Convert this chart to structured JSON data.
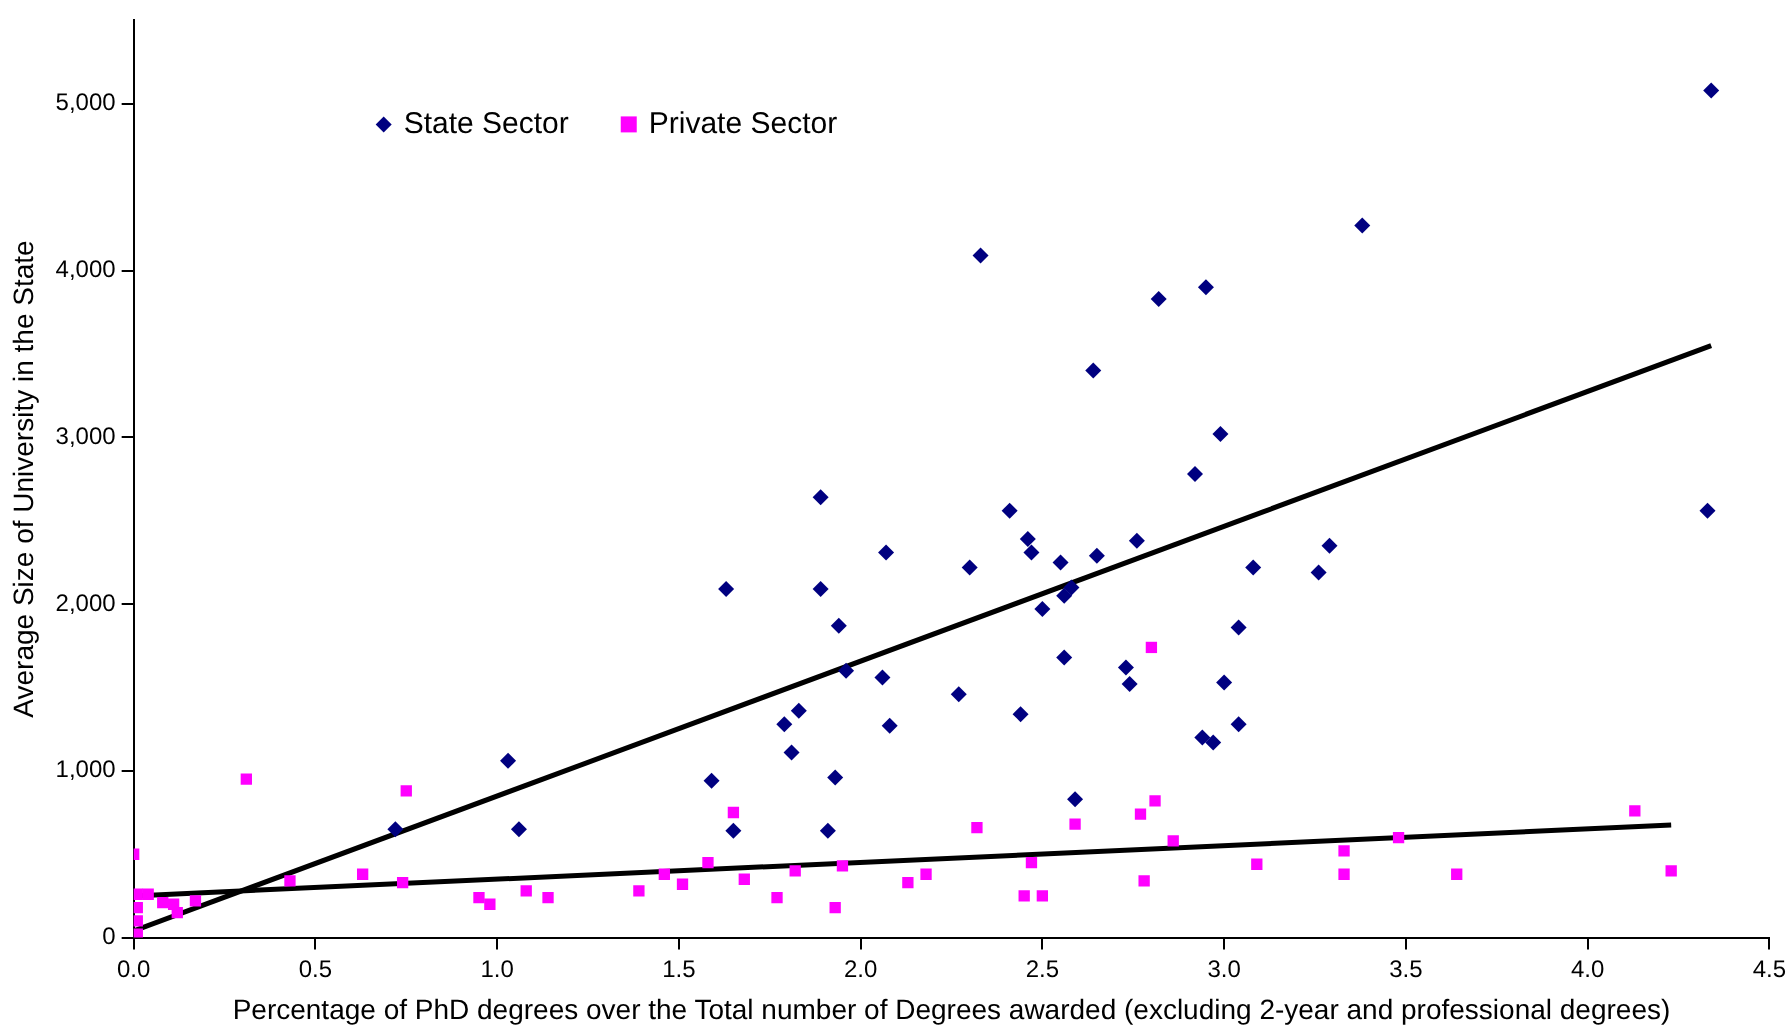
{
  "chart_data": {
    "type": "scatter",
    "xlabel": "Percentage of PhD degrees over the Total number of Degrees awarded (excluding 2-year and professional degrees)",
    "ylabel": "Average Size of University in the State",
    "xlim": [
      0,
      4.5
    ],
    "xticks": [
      {
        "value": 0,
        "label": "0.0"
      },
      {
        "value": 0.5,
        "label": "0.5"
      },
      {
        "value": 1,
        "label": "1.0"
      },
      {
        "value": 1.5,
        "label": "1.5"
      },
      {
        "value": 2,
        "label": "2.0"
      },
      {
        "value": 2.5,
        "label": "2.5"
      },
      {
        "value": 3,
        "label": "3.0"
      },
      {
        "value": 3.5,
        "label": "3.5"
      },
      {
        "value": 4,
        "label": "4.0"
      },
      {
        "value": 4.5,
        "label": "4.5"
      }
    ],
    "ylim": [
      0,
      5500
    ],
    "yticks": [
      0,
      {
        "value": 1000,
        "label": "1,000"
      },
      {
        "value": 2000,
        "label": "2,000"
      },
      {
        "value": 3000,
        "label": "3,000"
      },
      {
        "value": 4000,
        "label": "4,000"
      },
      {
        "value": 5000,
        "label": "5,000"
      }
    ],
    "grid": false,
    "legend": "top left",
    "series": [
      {
        "name": "State Sector",
        "color": "#000080",
        "marker": "diamond",
        "x": [
          0.72,
          1.03,
          1.06,
          1.59,
          1.63,
          1.65,
          1.79,
          1.81,
          1.83,
          1.89,
          1.89,
          1.91,
          1.93,
          1.94,
          1.96,
          2.06,
          2.07,
          2.08,
          2.27,
          2.3,
          2.33,
          2.41,
          2.44,
          2.46,
          2.47,
          2.5,
          2.55,
          2.56,
          2.56,
          2.58,
          2.59,
          2.64,
          2.65,
          2.73,
          2.74,
          2.76,
          2.82,
          2.92,
          2.94,
          2.95,
          2.97,
          2.99,
          3.0,
          3.04,
          3.04,
          3.08,
          3.26,
          3.29,
          3.38,
          4.33,
          4.34
        ],
        "values": [
          650,
          1060,
          650,
          940,
          2090,
          640,
          1280,
          1110,
          1360,
          2640,
          2090,
          640,
          960,
          1870,
          1600,
          1560,
          2310,
          1270,
          1460,
          2220,
          4090,
          2560,
          1340,
          2390,
          2310,
          1970,
          2250,
          1680,
          2050,
          2100,
          830,
          3400,
          2290,
          1620,
          1520,
          2380,
          3830,
          2780,
          1200,
          3900,
          1170,
          3020,
          1530,
          1860,
          1280,
          2220,
          2190,
          2350,
          4270,
          2560,
          5080
        ]
      },
      {
        "name": "Private Sector",
        "color": "#ff00ff",
        "marker": "square",
        "x": [
          0.0,
          0.01,
          0.04,
          0.01,
          0.01,
          0.01,
          0.08,
          0.11,
          0.12,
          0.17,
          0.31,
          0.43,
          0.63,
          0.74,
          0.75,
          0.95,
          0.98,
          1.08,
          1.14,
          1.39,
          1.46,
          1.51,
          1.58,
          1.65,
          1.68,
          1.77,
          1.82,
          1.93,
          1.95,
          2.13,
          2.18,
          2.32,
          2.45,
          2.47,
          2.5,
          2.59,
          2.77,
          2.78,
          2.8,
          2.81,
          2.86,
          3.09,
          3.33,
          3.33,
          3.48,
          3.64,
          4.13,
          4.23
        ],
        "values": [
          500,
          260,
          260,
          180,
          100,
          20,
          210,
          200,
          150,
          220,
          950,
          340,
          380,
          330,
          880,
          240,
          200,
          280,
          240,
          280,
          380,
          320,
          450,
          750,
          350,
          240,
          400,
          180,
          430,
          330,
          380,
          660,
          250,
          450,
          250,
          680,
          740,
          340,
          1740,
          820,
          580,
          440,
          520,
          380,
          600,
          380,
          760,
          400
        ]
      },
      {
        "type": "line",
        "color": "#000000",
        "marker": "none",
        "line_style": "solid",
        "x": [
          0,
          4.34
        ],
        "values": [
          40,
          3550
        ]
      },
      {
        "type": "line",
        "color": "#000000",
        "marker": "none",
        "line_style": "solid",
        "x": [
          0,
          4.23
        ],
        "values": [
          250,
          675
        ]
      }
    ]
  }
}
